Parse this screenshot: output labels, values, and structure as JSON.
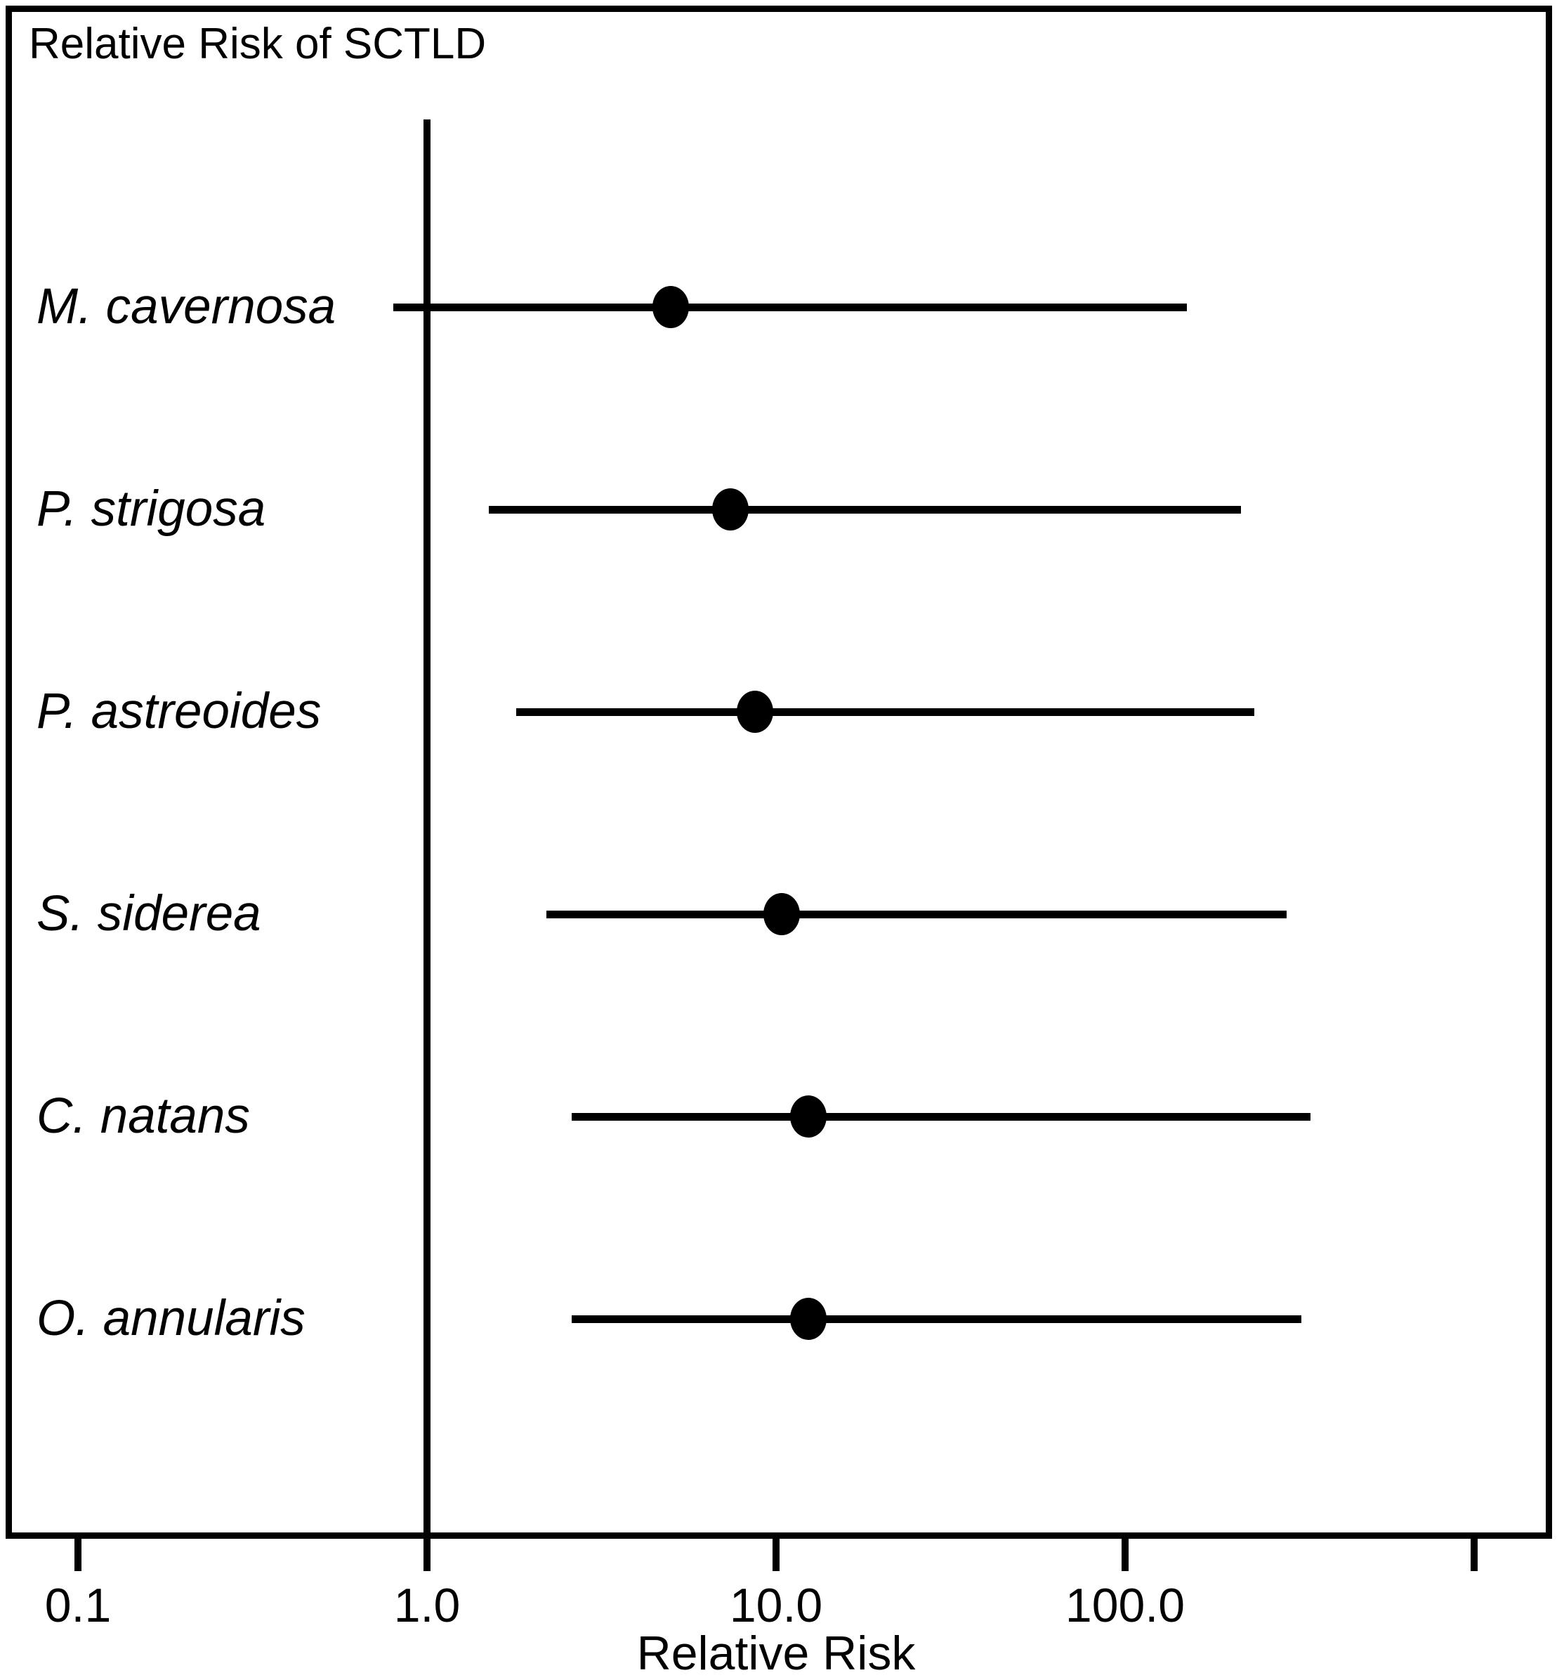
{
  "chart_data": {
    "type": "scatter",
    "subtype": "forest-plot",
    "title": "Relative Risk of SCTLD",
    "xlabel": "Relative Risk",
    "x_scale": "log10",
    "xlim": [
      0.06,
      1700
    ],
    "grid": false,
    "legend": "none",
    "reference_line_x": 1.0,
    "x_ticks": [
      {
        "value": 0.1,
        "label": "0.1"
      },
      {
        "value": 1.0,
        "label": "1.0"
      },
      {
        "value": 10.0,
        "label": "10.0"
      },
      {
        "value": 100.0,
        "label": "100.0"
      },
      {
        "value": 1000.0,
        "label": ""
      }
    ],
    "categories": [
      "M. cavernosa",
      "P. strigosa",
      "P. astreoides",
      "S. siderea",
      "C. natans",
      "O. annularis"
    ],
    "series": [
      {
        "label": "M. cavernosa",
        "rr": 5.0,
        "ci_low": 0.8,
        "ci_high": 150
      },
      {
        "label": "P. strigosa",
        "rr": 7.4,
        "ci_low": 1.5,
        "ci_high": 215
      },
      {
        "label": "P. astreoides",
        "rr": 8.7,
        "ci_low": 1.8,
        "ci_high": 235
      },
      {
        "label": "S. siderea",
        "rr": 10.4,
        "ci_low": 2.2,
        "ci_high": 290
      },
      {
        "label": "C. natans",
        "rr": 12.4,
        "ci_low": 2.6,
        "ci_high": 340
      },
      {
        "label": "O. annularis",
        "rr": 12.4,
        "ci_low": 2.6,
        "ci_high": 320
      }
    ],
    "colors": {
      "foreground": "#000000",
      "background": "#ffffff"
    }
  }
}
